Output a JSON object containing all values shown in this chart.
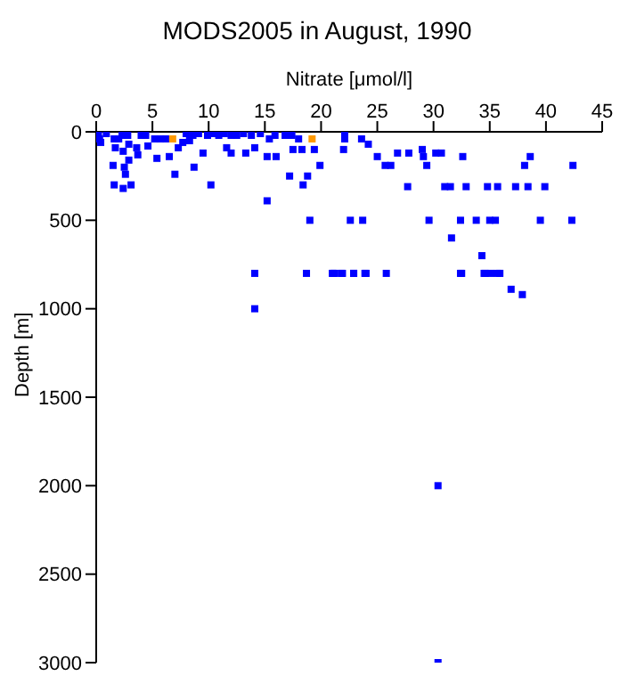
{
  "chart_data": {
    "type": "scatter",
    "title": "MODS2005 in August, 1990",
    "xlabel": "Nitrate [μmol/l]",
    "ylabel": "Depth [m]",
    "xlim": [
      0,
      45
    ],
    "xticks": [
      0,
      5,
      10,
      15,
      20,
      25,
      30,
      35,
      40,
      45
    ],
    "ylim": [
      3000,
      0
    ],
    "yticks": [
      0,
      500,
      1000,
      1500,
      2000,
      2500,
      3000
    ],
    "grid": false,
    "legend": false,
    "marker": "square",
    "series": [
      {
        "color": "#0000ff",
        "x": [
          0.2,
          0.3,
          0.4,
          0.9,
          1.6,
          1.7,
          1.5,
          1.6,
          2,
          2.3,
          2.4,
          2.5,
          2.6,
          2.4,
          3.1,
          2.8,
          2.9,
          2.9,
          3.6,
          3.7,
          4,
          4.4,
          4.6,
          5.2,
          5.4,
          5.7,
          6.2,
          6.5,
          7,
          7.3,
          7.7,
          8,
          8.3,
          8.6,
          8.7,
          9.1,
          9.5,
          9.9,
          10.2,
          10.4,
          10.9,
          11.4,
          11.6,
          12,
          12,
          12.5,
          13.1,
          13.3,
          13.8,
          14.1,
          14.6,
          15.2,
          15.4,
          15.2,
          15.9,
          16,
          16.8,
          17.2,
          17.4,
          17.5,
          18,
          18.3,
          18.4,
          18.8,
          19,
          19.4,
          19.9,
          21,
          18.7,
          14.1,
          22.1,
          22.1,
          22,
          23.6,
          24.2,
          25,
          25.7,
          26.2,
          26.8,
          27.8,
          27.7,
          29,
          29.1,
          29.4,
          30.2,
          30.7,
          31,
          31.5,
          32.6,
          32.9,
          34.8,
          35.7,
          37.3,
          38.4,
          39.9,
          38.1,
          38.6,
          42.4,
          22.6,
          23.7,
          29.6,
          32.4,
          33.8,
          35,
          35.5,
          39.5,
          42.3,
          31.6,
          34.3,
          21.2,
          21.9,
          22.9,
          24,
          25.8,
          32.5,
          34.6,
          35.7,
          21.1,
          21.8,
          22.9,
          23.9,
          32.4,
          34.5,
          35.1,
          35.9,
          36.9,
          37.9,
          14.1,
          30.4,
          30.4
        ],
        "values": [
          10,
          40,
          60,
          10,
          40,
          90,
          190,
          300,
          40,
          20,
          110,
          200,
          240,
          320,
          300,
          20,
          70,
          160,
          90,
          130,
          20,
          20,
          80,
          40,
          150,
          40,
          40,
          140,
          240,
          90,
          60,
          10,
          50,
          20,
          200,
          10,
          120,
          20,
          300,
          10,
          20,
          10,
          90,
          20,
          120,
          20,
          10,
          120,
          20,
          90,
          10,
          140,
          40,
          390,
          20,
          140,
          20,
          250,
          20,
          100,
          40,
          100,
          300,
          250,
          500,
          100,
          190,
          800,
          800,
          800,
          0,
          40,
          100,
          40,
          70,
          140,
          190,
          190,
          120,
          120,
          310,
          100,
          140,
          190,
          120,
          120,
          310,
          310,
          140,
          310,
          310,
          310,
          310,
          310,
          310,
          190,
          140,
          190,
          500,
          500,
          500,
          500,
          500,
          500,
          500,
          500,
          500,
          600,
          700,
          800,
          800,
          800,
          800,
          800,
          800,
          800,
          800,
          800,
          800,
          800,
          800,
          800,
          800,
          800,
          800,
          890,
          920,
          1000,
          2000,
          3000
        ]
      },
      {
        "color": "#ff9900",
        "x": [
          6.8,
          19.2
        ],
        "values": [
          40,
          40
        ]
      }
    ]
  }
}
